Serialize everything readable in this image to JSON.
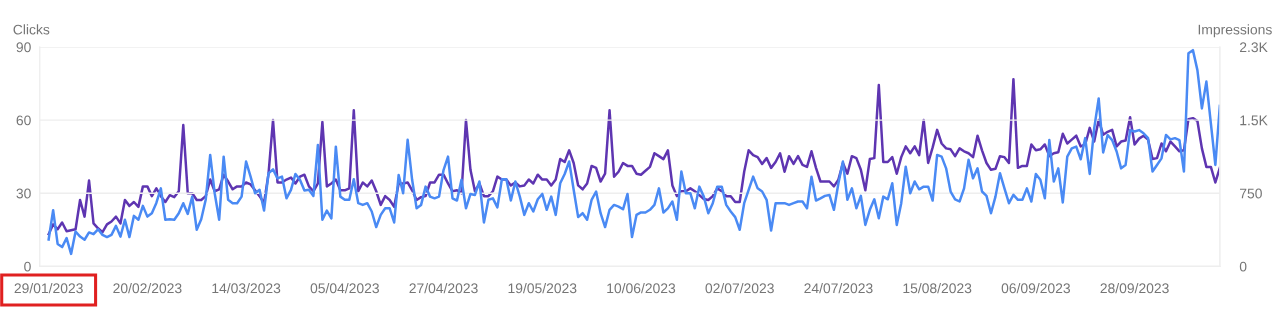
{
  "chart_data": {
    "type": "line",
    "ylabel": "Clicks",
    "y2label": "Impressions",
    "x": [
      "2023-01-29",
      "2023-01-30",
      "2023-01-31",
      "2023-02-01",
      "2023-02-02",
      "2023-02-03",
      "2023-02-04",
      "2023-02-05",
      "2023-02-06",
      "2023-02-07",
      "2023-02-08",
      "2023-02-09",
      "2023-02-10",
      "2023-02-11",
      "2023-02-12",
      "2023-02-13",
      "2023-02-14",
      "2023-02-15",
      "2023-02-16",
      "2023-02-17",
      "2023-02-18",
      "2023-02-19",
      "2023-02-20",
      "2023-02-21",
      "2023-02-22",
      "2023-02-23",
      "2023-02-24",
      "2023-02-25",
      "2023-02-26",
      "2023-02-27",
      "2023-02-28",
      "2023-03-01",
      "2023-03-02",
      "2023-03-03",
      "2023-03-04",
      "2023-03-05",
      "2023-03-06",
      "2023-03-07",
      "2023-03-08",
      "2023-03-09",
      "2023-03-10",
      "2023-03-11",
      "2023-03-12",
      "2023-03-13",
      "2023-03-14",
      "2023-03-15",
      "2023-03-16",
      "2023-03-17",
      "2023-03-18",
      "2023-03-19",
      "2023-03-20",
      "2023-03-21",
      "2023-03-22",
      "2023-03-23",
      "2023-03-24",
      "2023-03-25",
      "2023-03-26",
      "2023-03-27",
      "2023-03-28",
      "2023-03-29",
      "2023-03-30",
      "2023-03-31",
      "2023-04-01",
      "2023-04-02",
      "2023-04-03",
      "2023-04-04",
      "2023-04-05",
      "2023-04-06",
      "2023-04-07",
      "2023-04-08",
      "2023-04-09",
      "2023-04-10",
      "2023-04-11",
      "2023-04-12",
      "2023-04-13",
      "2023-04-14",
      "2023-04-15",
      "2023-04-16",
      "2023-04-17",
      "2023-04-18",
      "2023-04-19",
      "2023-04-20",
      "2023-04-21",
      "2023-04-22",
      "2023-04-23",
      "2023-04-24",
      "2023-04-25",
      "2023-04-26",
      "2023-04-27",
      "2023-04-28",
      "2023-04-29",
      "2023-04-30",
      "2023-05-01",
      "2023-05-02",
      "2023-05-03",
      "2023-05-04",
      "2023-05-05",
      "2023-05-06",
      "2023-05-07",
      "2023-05-08",
      "2023-05-09",
      "2023-05-10",
      "2023-05-11",
      "2023-05-12",
      "2023-05-13",
      "2023-05-14",
      "2023-05-15",
      "2023-05-16",
      "2023-05-17",
      "2023-05-18",
      "2023-05-19",
      "2023-05-20",
      "2023-05-21",
      "2023-05-22",
      "2023-05-23",
      "2023-05-24",
      "2023-05-25",
      "2023-05-26",
      "2023-05-27",
      "2023-05-28",
      "2023-05-29",
      "2023-05-30",
      "2023-05-31",
      "2023-06-01",
      "2023-06-02",
      "2023-06-03",
      "2023-06-04",
      "2023-06-05",
      "2023-06-06",
      "2023-06-07",
      "2023-06-08",
      "2023-06-09",
      "2023-06-10",
      "2023-06-11",
      "2023-06-12",
      "2023-06-13",
      "2023-06-14",
      "2023-06-15",
      "2023-06-16",
      "2023-06-17",
      "2023-06-18",
      "2023-06-19",
      "2023-06-20",
      "2023-06-21",
      "2023-06-22",
      "2023-06-23",
      "2023-06-24",
      "2023-06-25",
      "2023-06-26",
      "2023-06-27",
      "2023-06-28",
      "2023-06-29",
      "2023-06-30",
      "2023-07-01",
      "2023-07-02",
      "2023-07-03",
      "2023-07-04",
      "2023-07-05",
      "2023-07-06",
      "2023-07-07",
      "2023-07-08",
      "2023-07-09",
      "2023-07-10",
      "2023-07-11",
      "2023-07-12",
      "2023-07-13",
      "2023-07-14",
      "2023-07-15",
      "2023-07-16",
      "2023-07-17",
      "2023-07-18",
      "2023-07-19",
      "2023-07-20",
      "2023-07-21",
      "2023-07-22",
      "2023-07-23",
      "2023-07-24",
      "2023-07-25",
      "2023-07-26",
      "2023-07-27",
      "2023-07-28",
      "2023-07-29",
      "2023-07-30",
      "2023-07-31",
      "2023-08-01",
      "2023-08-02",
      "2023-08-03",
      "2023-08-04",
      "2023-08-05",
      "2023-08-06",
      "2023-08-07",
      "2023-08-08",
      "2023-08-09",
      "2023-08-10",
      "2023-08-11",
      "2023-08-12",
      "2023-08-13",
      "2023-08-14",
      "2023-08-15",
      "2023-08-16",
      "2023-08-17",
      "2023-08-18",
      "2023-08-19",
      "2023-08-20",
      "2023-08-21",
      "2023-08-22",
      "2023-08-23",
      "2023-08-24",
      "2023-08-25",
      "2023-08-26",
      "2023-08-27",
      "2023-08-28",
      "2023-08-29",
      "2023-08-30",
      "2023-08-31",
      "2023-09-01",
      "2023-09-02",
      "2023-09-03",
      "2023-09-04",
      "2023-09-05",
      "2023-09-06",
      "2023-09-07",
      "2023-09-08",
      "2023-09-09",
      "2023-09-10",
      "2023-09-11",
      "2023-09-12",
      "2023-09-13",
      "2023-09-14",
      "2023-09-15",
      "2023-09-16",
      "2023-09-17",
      "2023-09-18",
      "2023-09-19",
      "2023-09-20",
      "2023-09-21",
      "2023-09-22",
      "2023-09-23",
      "2023-09-24",
      "2023-09-25",
      "2023-09-26",
      "2023-09-27",
      "2023-09-28",
      "2023-09-29",
      "2023-09-30",
      "2023-10-01",
      "2023-10-02",
      "2023-10-03",
      "2023-10-04",
      "2023-10-05",
      "2023-10-06",
      "2023-10-07",
      "2023-10-08",
      "2023-10-09",
      "2023-10-10",
      "2023-10-11",
      "2023-10-12",
      "2023-10-13",
      "2023-10-14",
      "2023-10-15",
      "2023-10-16",
      "2023-10-17"
    ],
    "series": [
      {
        "color": "#4a8af4",
        "values": [
          11,
          23,
          9.2,
          7.9,
          11.6,
          5.1,
          14.3,
          12.2,
          10.9,
          13.9,
          13.2,
          15.2,
          12.9,
          12,
          12.9,
          16.6,
          12.2,
          19.1,
          12,
          20.7,
          19.1,
          24.8,
          20.4,
          21.8,
          26,
          32,
          19.1,
          19.3,
          19.1,
          21.8,
          25.9,
          21.5,
          28.6,
          15,
          19.3,
          27.3,
          45.7,
          30,
          19.1,
          45,
          27.3,
          25.9,
          25.9,
          28.6,
          43,
          36.8,
          30,
          31.4,
          22.9,
          38.2,
          39.8,
          36.1,
          36.8,
          27.9,
          31.4,
          37.9,
          35.5,
          31.1,
          31.4,
          28.9,
          49.8,
          19.1,
          22.9,
          19.7,
          49.1,
          28.6,
          27.3,
          27.3,
          35.7,
          25.9,
          25.2,
          25.9,
          22.5,
          16.1,
          21.1,
          23.8,
          23.8,
          18,
          37.5,
          30,
          51.9,
          35.5,
          23.8,
          25.2,
          32.7,
          28.6,
          27.9,
          28.6,
          39.5,
          45,
          27.9,
          27,
          35.5,
          23.8,
          29.7,
          29.3,
          34.8,
          18,
          27.3,
          27.9,
          24.2,
          35.7,
          35.7,
          27,
          34.8,
          28.6,
          21.1,
          25.9,
          22.5,
          27.5,
          29.7,
          23.2,
          28.6,
          21.1,
          34.1,
          37.9,
          43,
          31.4,
          20.2,
          21.8,
          19.1,
          27.3,
          30.7,
          21.8,
          16.1,
          23.2,
          25.2,
          24.5,
          23.4,
          29.7,
          12,
          21.1,
          22.1,
          22.1,
          23.2,
          25.2,
          32,
          22.1,
          23.8,
          26.6,
          19.1,
          38.9,
          30,
          30,
          23.8,
          32.7,
          28.6,
          21.8,
          25.9,
          32.7,
          32.7,
          25.2,
          22.5,
          20.2,
          15,
          25.9,
          31.4,
          36.8,
          32,
          30.7,
          27.3,
          14.7,
          25.9,
          25.9,
          25.9,
          25.2,
          25.9,
          26.6,
          26.6,
          23.8,
          36.8,
          27,
          27.9,
          28.9,
          29.3,
          23.2,
          34.1,
          43,
          27.3,
          32,
          23.8,
          28.9,
          17,
          23.2,
          27.5,
          19.7,
          28.6,
          27.5,
          34.1,
          17,
          25.9,
          40.9,
          30,
          34.8,
          31.6,
          32.7,
          32.7,
          27,
          45.7,
          45,
          40.2,
          30.7,
          27.5,
          26.6,
          32,
          43.7,
          36.1,
          40.2,
          30.7,
          28.9,
          21.8,
          28.6,
          38.2,
          32,
          25.9,
          29.3,
          27.3,
          27.3,
          32,
          26.6,
          37.9,
          35.5,
          27.9,
          51.8,
          34.8,
          40.2,
          26.2,
          45,
          48.4,
          49.1,
          43.9,
          52.6,
          37.9,
          56.6,
          68.9,
          46.7,
          53.9,
          51.8,
          47.1,
          40.2,
          41.6,
          55.9,
          55.3,
          55.9,
          54.6,
          52.6,
          38.9,
          41.6,
          44.3,
          53.9,
          52.1,
          52.6,
          51.8,
          38.9,
          87.4,
          88.7,
          80.5,
          64.8,
          75.8,
          58.7,
          41.6,
          65.8
        ]
      },
      {
        "color": "#5e35b1",
        "axis": "y2",
        "values": [
          330,
          430,
          380,
          450,
          360,
          370,
          380,
          680,
          510,
          880,
          440,
          390,
          350,
          430,
          460,
          510,
          440,
          680,
          620,
          660,
          610,
          820,
          820,
          720,
          800,
          720,
          660,
          730,
          710,
          770,
          1450,
          750,
          750,
          680,
          680,
          720,
          890,
          770,
          790,
          940,
          870,
          790,
          820,
          820,
          860,
          840,
          780,
          720,
          650,
          950,
          1500,
          860,
          860,
          890,
          910,
          850,
          920,
          940,
          820,
          770,
          850,
          1480,
          820,
          850,
          890,
          780,
          780,
          800,
          1600,
          770,
          860,
          820,
          880,
          770,
          630,
          720,
          680,
          610,
          850,
          850,
          860,
          780,
          680,
          710,
          720,
          860,
          860,
          940,
          940,
          850,
          770,
          780,
          750,
          1500,
          990,
          770,
          850,
          720,
          720,
          770,
          920,
          890,
          890,
          830,
          860,
          820,
          830,
          890,
          850,
          940,
          890,
          890,
          830,
          890,
          1100,
          1070,
          1190,
          1060,
          830,
          790,
          850,
          1030,
          1010,
          870,
          950,
          1600,
          920,
          970,
          1060,
          1030,
          1030,
          950,
          940,
          980,
          1020,
          1160,
          1130,
          1100,
          1190,
          830,
          720,
          770,
          770,
          800,
          770,
          730,
          690,
          680,
          720,
          800,
          770,
          720,
          720,
          660,
          660,
          970,
          1190,
          1140,
          1120,
          1050,
          1110,
          1010,
          1070,
          1160,
          970,
          1130,
          1050,
          1130,
          1040,
          1020,
          1180,
          1010,
          870,
          870,
          870,
          820,
          890,
          1060,
          950,
          1130,
          1110,
          990,
          780,
          1100,
          1110,
          1860,
          1070,
          1070,
          1120,
          950,
          1120,
          1230,
          1160,
          1230,
          1140,
          1500,
          1060,
          1220,
          1400,
          1260,
          1210,
          1200,
          1130,
          1210,
          1180,
          1160,
          1120,
          1340,
          1190,
          1060,
          990,
          1000,
          1130,
          1120,
          1060,
          1920,
          1010,
          1030,
          1030,
          1250,
          1190,
          1200,
          1250,
          1130,
          1160,
          1170,
          1360,
          1260,
          1300,
          1340,
          1230,
          1250,
          1420,
          1280,
          1500,
          1350,
          1380,
          1400,
          1230,
          1280,
          1290,
          1530,
          1250,
          1310,
          1340,
          1300,
          1100,
          1110,
          1260,
          1180,
          1280,
          1230,
          1180,
          1190,
          1510,
          1520,
          1490,
          1210,
          1020,
          1020,
          860,
          1010
        ]
      }
    ],
    "xlim": [
      "2023-01-27",
      "2023-10-17"
    ],
    "xticks": [
      {
        "value": "2023-01-29",
        "label": "29/01/2023"
      },
      {
        "value": "2023-02-20",
        "label": "20/02/2023"
      },
      {
        "value": "2023-03-14",
        "label": "14/03/2023"
      },
      {
        "value": "2023-04-05",
        "label": "05/04/2023"
      },
      {
        "value": "2023-04-27",
        "label": "27/04/2023"
      },
      {
        "value": "2023-05-19",
        "label": "19/05/2023"
      },
      {
        "value": "2023-06-10",
        "label": "10/06/2023"
      },
      {
        "value": "2023-07-02",
        "label": "02/07/2023"
      },
      {
        "value": "2023-07-24",
        "label": "24/07/2023"
      },
      {
        "value": "2023-08-15",
        "label": "15/08/2023"
      },
      {
        "value": "2023-09-06",
        "label": "06/09/2023"
      },
      {
        "value": "2023-09-28",
        "label": "28/09/2023"
      }
    ],
    "ylim": [
      0,
      90
    ],
    "yticks": [
      0,
      30,
      60,
      90
    ],
    "y2lim": [
      0,
      2250
    ],
    "y2ticks": [
      0,
      750,
      {
        "value": 1500,
        "label": "1.5K"
      },
      {
        "value": 2250,
        "label": "2.3K"
      }
    ],
    "grid": "y",
    "marker": "none",
    "line_style": "solid"
  }
}
